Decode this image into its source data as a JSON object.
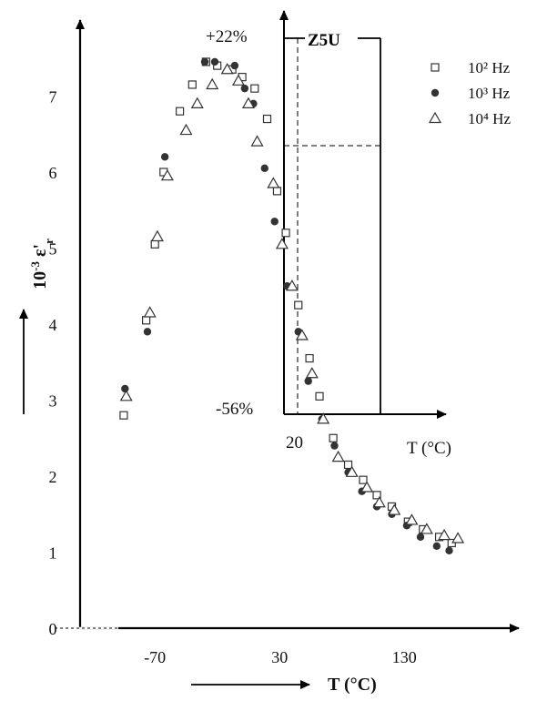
{
  "chart_data": {
    "type": "scatter",
    "xlabel": "T (°C)",
    "ylabel": "10-3 ε'r",
    "xlim": [
      -130,
      175
    ],
    "ylim": [
      0,
      7.8
    ],
    "x_ticks": [
      -70,
      30,
      130
    ],
    "y_ticks": [
      0,
      1,
      2,
      3,
      4,
      5,
      6,
      7
    ],
    "x_tick_labels": [
      "-70",
      "30",
      "130"
    ],
    "y_tick_labels": [
      "0",
      "1",
      "2",
      "3",
      "4",
      "5",
      "6",
      "7"
    ],
    "grid": false,
    "legend_position": "top-right",
    "series": [
      {
        "name": "10² Hz",
        "marker": "open-square",
        "points": [
          [
            -95,
            2.8
          ],
          [
            -77,
            4.05
          ],
          [
            -70,
            5.05
          ],
          [
            -63,
            6.0
          ],
          [
            -50,
            6.8
          ],
          [
            -40,
            7.15
          ],
          [
            -29,
            7.45
          ],
          [
            -20,
            7.4
          ],
          [
            -8,
            7.35
          ],
          [
            0,
            7.25
          ],
          [
            10,
            7.1
          ],
          [
            20,
            6.7
          ],
          [
            28,
            5.75
          ],
          [
            35,
            5.2
          ],
          [
            45,
            4.25
          ],
          [
            54,
            3.55
          ],
          [
            62,
            3.05
          ],
          [
            73,
            2.5
          ],
          [
            85,
            2.15
          ],
          [
            97,
            1.95
          ],
          [
            108,
            1.75
          ],
          [
            120,
            1.6
          ],
          [
            133,
            1.4
          ],
          [
            145,
            1.3
          ],
          [
            158,
            1.2
          ],
          [
            168,
            1.12
          ]
        ]
      },
      {
        "name": "10³ Hz",
        "marker": "filled-circle",
        "points": [
          [
            -94,
            3.15
          ],
          [
            -76,
            3.9
          ],
          [
            -62,
            6.2
          ],
          [
            -30,
            7.45
          ],
          [
            -22,
            7.45
          ],
          [
            -6,
            7.4
          ],
          [
            2,
            7.1
          ],
          [
            9,
            6.9
          ],
          [
            18,
            6.05
          ],
          [
            26,
            5.35
          ],
          [
            36,
            4.5
          ],
          [
            45,
            3.9
          ],
          [
            53,
            3.25
          ],
          [
            64,
            2.75
          ],
          [
            74,
            2.4
          ],
          [
            85,
            2.05
          ],
          [
            96,
            1.8
          ],
          [
            108,
            1.6
          ],
          [
            120,
            1.5
          ],
          [
            132,
            1.35
          ],
          [
            143,
            1.2
          ],
          [
            156,
            1.08
          ],
          [
            166,
            1.02
          ]
        ]
      },
      {
        "name": "10⁴ Hz",
        "marker": "open-triangle",
        "points": [
          [
            -93,
            3.05
          ],
          [
            -74,
            4.15
          ],
          [
            -68,
            5.15
          ],
          [
            -60,
            5.95
          ],
          [
            -45,
            6.55
          ],
          [
            -36,
            6.9
          ],
          [
            -24,
            7.15
          ],
          [
            -12,
            7.35
          ],
          [
            -3,
            7.2
          ],
          [
            5,
            6.9
          ],
          [
            12,
            6.4
          ],
          [
            25,
            5.85
          ],
          [
            32,
            5.05
          ],
          [
            40,
            4.5
          ],
          [
            48,
            3.85
          ],
          [
            56,
            3.35
          ],
          [
            65,
            2.75
          ],
          [
            77,
            2.25
          ],
          [
            88,
            2.05
          ],
          [
            100,
            1.85
          ],
          [
            110,
            1.65
          ],
          [
            122,
            1.55
          ],
          [
            136,
            1.42
          ],
          [
            148,
            1.3
          ],
          [
            162,
            1.22
          ],
          [
            173,
            1.18
          ]
        ]
      }
    ],
    "inset": {
      "label": "Z5U",
      "upper_label": "+22%",
      "lower_label": "-56%",
      "x_tick_label": "20",
      "x_axis_label": "T (°C)",
      "box_x_range": [
        10,
        85
      ],
      "upper_value": 7.65,
      "lower_value": 2.75,
      "dashed_x": 20,
      "dashed_y": 6.25
    }
  }
}
